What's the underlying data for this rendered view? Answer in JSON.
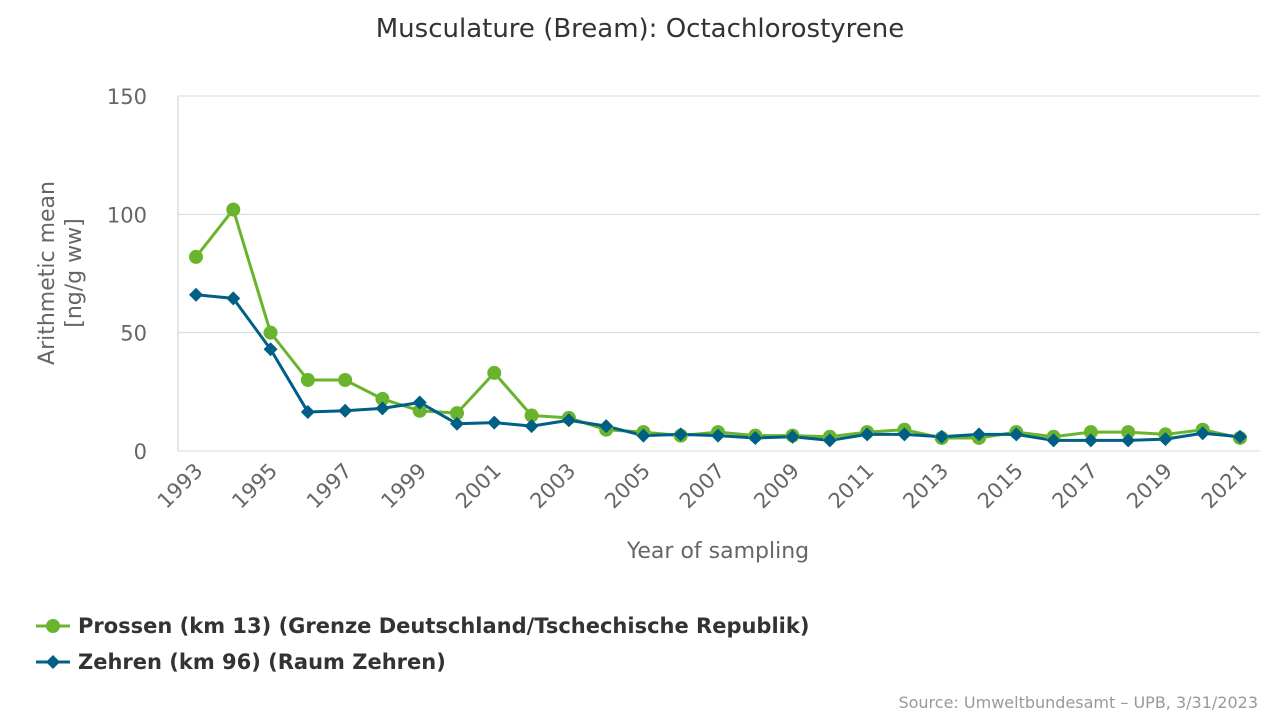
{
  "source": "Source: Umweltbundesamt – UPB, 3/31/2023",
  "chart_data": {
    "type": "line",
    "title": "Musculature (Bream): Octachlorostyrene",
    "xlabel": "Year of sampling",
    "ylabel": [
      "Arithmetic mean",
      "[ng/g ww]"
    ],
    "ylim": [
      0,
      150
    ],
    "yticks": [
      "0",
      "50",
      "100",
      "150"
    ],
    "x": [
      1993,
      1994,
      1995,
      1996,
      1997,
      1998,
      1999,
      2000,
      2001,
      2002,
      2003,
      2004,
      2005,
      2006,
      2007,
      2008,
      2009,
      2010,
      2011,
      2012,
      2013,
      2014,
      2015,
      2016,
      2017,
      2018,
      2019,
      2020,
      2021
    ],
    "xticks": [
      "1993",
      "1995",
      "1997",
      "1999",
      "2001",
      "2003",
      "2005",
      "2007",
      "2009",
      "2011",
      "2013",
      "2015",
      "2017",
      "2019",
      "2021"
    ],
    "grid": true,
    "legend_position": "bottom-left",
    "series": [
      {
        "name": "Prossen (km 13) (Grenze Deutschland/Tschechische Republik)",
        "color": "#6ab42d",
        "marker": "circle",
        "values": [
          82,
          102,
          50,
          30,
          30,
          22,
          17,
          16,
          33,
          15,
          14,
          9,
          8,
          6.5,
          8,
          6.5,
          6.5,
          6,
          8,
          9,
          5.5,
          5.5,
          8,
          6,
          8,
          8,
          7,
          9,
          5.5
        ]
      },
      {
        "name": "Zehren (km 96) (Raum Zehren)",
        "color": "#005f85",
        "marker": "diamond",
        "values": [
          66,
          64.5,
          43,
          16.5,
          17,
          18,
          20.5,
          11.5,
          12,
          10.5,
          13,
          10.5,
          6.5,
          7,
          6.5,
          5.5,
          6,
          4.5,
          7,
          7,
          6,
          7,
          7,
          4.5,
          4.5,
          4.5,
          5,
          7.5,
          6
        ]
      }
    ]
  }
}
